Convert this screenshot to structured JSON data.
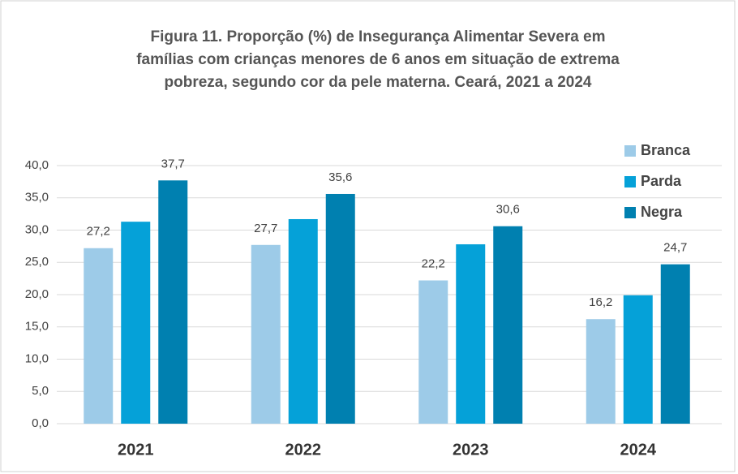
{
  "chart_data": {
    "type": "bar",
    "title": [
      "Figura 11. Proporção (%) de  Insegurança Alimentar Severa em",
      "famílias com crianças menores de 6 anos em situação de extrema",
      "pobreza, segundo cor da pele materna. Ceará,  2021 a 2024"
    ],
    "categories": [
      "2021",
      "2022",
      "2023",
      "2024"
    ],
    "series": [
      {
        "name": "Branca",
        "color": "#9dcbe8",
        "values": [
          27.2,
          27.7,
          22.2,
          16.2
        ],
        "value_labels": [
          "27,2",
          "27,7",
          "22,2",
          "16,2"
        ]
      },
      {
        "name": "Parda",
        "color": "#05a1d8",
        "values": [
          31.3,
          31.7,
          27.8,
          19.9
        ]
      },
      {
        "name": "Negra",
        "color": "#0080b0",
        "values": [
          37.7,
          35.6,
          30.6,
          24.7
        ],
        "value_labels": [
          "37,7",
          "35,6",
          "30,6",
          "24,7"
        ]
      }
    ],
    "ylim": [
      0,
      40
    ],
    "yticks": [
      {
        "value": 0,
        "label": "0,0"
      },
      {
        "value": 5,
        "label": "5,0"
      },
      {
        "value": 10,
        "label": "10,0"
      },
      {
        "value": 15,
        "label": "15,0"
      },
      {
        "value": 20,
        "label": "20,0"
      },
      {
        "value": 25,
        "label": "25,0"
      },
      {
        "value": 30,
        "label": "30,0"
      },
      {
        "value": 35,
        "label": "35,0"
      },
      {
        "value": 40,
        "label": "40,0"
      }
    ],
    "grid": true,
    "legend": "top-right"
  }
}
